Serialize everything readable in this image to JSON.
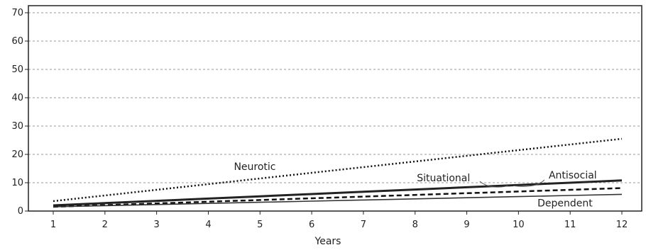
{
  "chart_data": {
    "type": "line",
    "title": "",
    "xlabel": "Years",
    "ylabel": "",
    "xlim": [
      1,
      12
    ],
    "ylim": [
      0,
      70
    ],
    "x": [
      1,
      2,
      3,
      4,
      5,
      6,
      7,
      8,
      9,
      10,
      11,
      12
    ],
    "yticks": [
      0,
      10,
      20,
      30,
      40,
      50,
      60,
      70
    ],
    "grid": "horizontal-dashed",
    "legend": "none",
    "series": [
      {
        "name": "Neurotic",
        "style": "dotted",
        "values": [
          3.5,
          5.5,
          7.5,
          9.5,
          11.5,
          13.5,
          15.5,
          17.5,
          19.5,
          21.5,
          23.5,
          25.5
        ]
      },
      {
        "name": "Antisocial",
        "style": "solid-thick",
        "values": [
          2.0,
          2.8,
          3.6,
          4.4,
          5.2,
          6.0,
          6.8,
          7.6,
          8.4,
          9.2,
          10.0,
          10.8
        ]
      },
      {
        "name": "Situational",
        "style": "dashed",
        "values": [
          1.5,
          2.1,
          2.7,
          3.3,
          3.9,
          4.5,
          5.1,
          5.7,
          6.3,
          6.9,
          7.5,
          8.1
        ]
      },
      {
        "name": "Dependent",
        "style": "solid-thin",
        "values": [
          1.5,
          1.9,
          2.3,
          2.7,
          3.1,
          3.5,
          3.9,
          4.3,
          4.7,
          5.1,
          5.5,
          5.9
        ]
      }
    ]
  }
}
